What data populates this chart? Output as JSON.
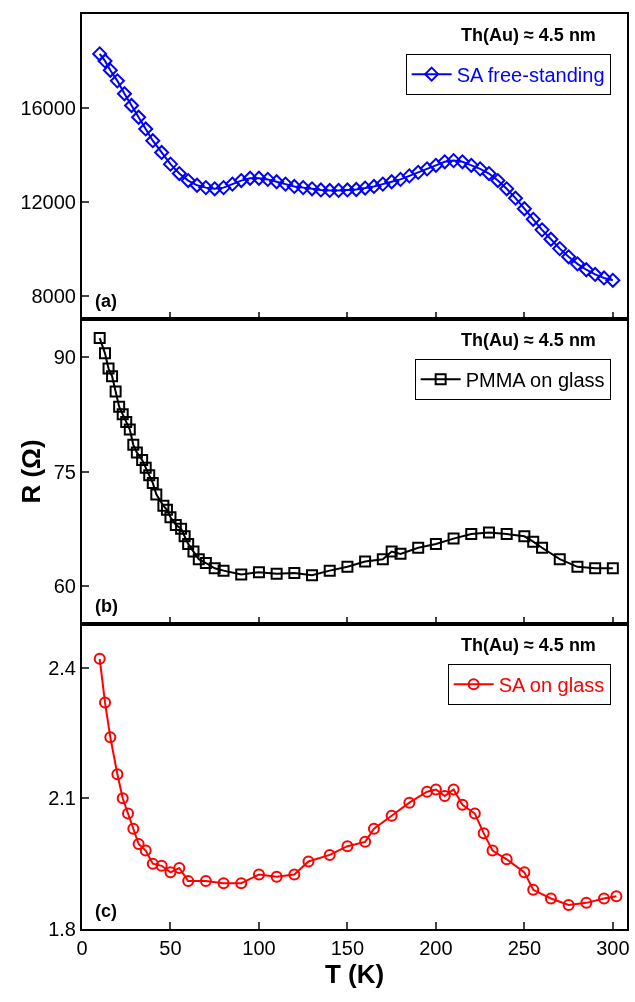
{
  "chart_data": [
    {
      "type": "line",
      "marker": "diamond",
      "legend": "top right",
      "tick_labels": "y",
      "xlim": [
        0,
        308
      ],
      "xticks": [
        0,
        50,
        100,
        150,
        200,
        250,
        300
      ],
      "ylim": [
        7000,
        20000
      ],
      "yticks": [
        8000,
        12000,
        16000
      ],
      "annotations": [
        "Th(Au) ≈ 4.5 nm",
        "(a)"
      ],
      "x": [
        10,
        13,
        16,
        20,
        24,
        28,
        32,
        36,
        40,
        45,
        50,
        55,
        60,
        65,
        70,
        75,
        80,
        85,
        90,
        95,
        100,
        105,
        110,
        115,
        120,
        125,
        130,
        135,
        140,
        145,
        150,
        155,
        160,
        165,
        170,
        175,
        180,
        185,
        190,
        195,
        200,
        205,
        210,
        215,
        220,
        225,
        230,
        235,
        240,
        245,
        250,
        255,
        260,
        265,
        270,
        275,
        280,
        285,
        290,
        295,
        300
      ],
      "series": [
        {
          "name": "SA free-standing",
          "color": "#0000ff",
          "values": [
            18300,
            18000,
            17600,
            17150,
            16600,
            16100,
            15600,
            15100,
            14600,
            14100,
            13600,
            13200,
            12900,
            12700,
            12600,
            12550,
            12600,
            12750,
            12900,
            13000,
            13000,
            12950,
            12850,
            12750,
            12650,
            12600,
            12550,
            12500,
            12480,
            12480,
            12500,
            12520,
            12580,
            12650,
            12750,
            12850,
            12950,
            13100,
            13250,
            13400,
            13550,
            13700,
            13750,
            13700,
            13550,
            13400,
            13200,
            12900,
            12550,
            12150,
            11700,
            11250,
            10800,
            10400,
            10000,
            9650,
            9350,
            9100,
            8900,
            8750,
            8650
          ]
        }
      ]
    },
    {
      "type": "line",
      "marker": "square",
      "legend": "top right",
      "tick_labels": "y",
      "ylabel": "R (Ω)",
      "xlim": [
        0,
        308
      ],
      "xticks": [
        0,
        50,
        100,
        150,
        200,
        250,
        300
      ],
      "ylim": [
        55,
        95
      ],
      "yticks": [
        60,
        75,
        90
      ],
      "annotations": [
        "Th(Au) ≈ 4.5 nm",
        "(b)"
      ],
      "x": [
        10,
        13,
        15,
        17,
        19,
        21,
        23,
        25,
        27,
        29,
        31,
        34,
        36,
        38,
        40,
        42,
        46,
        48,
        50,
        53,
        56,
        58,
        60,
        63,
        66,
        70,
        75,
        80,
        90,
        100,
        110,
        120,
        130,
        140,
        150,
        160,
        170,
        175,
        180,
        190,
        200,
        210,
        220,
        230,
        240,
        250,
        255,
        260,
        270,
        280,
        290,
        300
      ],
      "series": [
        {
          "name": "PMMA on glass",
          "color": "#000000",
          "values": [
            92.5,
            90.5,
            88.5,
            87.5,
            85.5,
            83.5,
            82.5,
            81.5,
            80.5,
            78.5,
            77.5,
            76.5,
            75.5,
            74.5,
            73.5,
            72,
            70.5,
            70,
            69,
            68,
            67.5,
            66.5,
            65.5,
            64.5,
            63.5,
            63,
            62.3,
            62,
            61.5,
            61.8,
            61.6,
            61.7,
            61.4,
            62,
            62.5,
            63.2,
            63.5,
            64.5,
            64.2,
            65,
            65.5,
            66.2,
            66.8,
            67,
            66.8,
            66.5,
            65.8,
            65,
            63.5,
            62.5,
            62.3,
            62.3
          ]
        }
      ]
    },
    {
      "type": "line",
      "marker": "circle",
      "legend": "top right",
      "xlabel": "T (K)",
      "xlim": [
        0,
        308
      ],
      "xticks": [
        0,
        50,
        100,
        150,
        200,
        250,
        300
      ],
      "ylim": [
        1.8,
        2.5
      ],
      "yticks": [
        1.8,
        2.1,
        2.4
      ],
      "annotations": [
        "Th(Au) ≈ 4.5 nm",
        "(c)"
      ],
      "x": [
        10,
        13,
        16,
        20,
        23,
        26,
        29,
        32,
        36,
        40,
        45,
        50,
        55,
        60,
        70,
        80,
        90,
        100,
        110,
        120,
        128,
        140,
        150,
        160,
        165,
        175,
        185,
        195,
        200,
        205,
        210,
        215,
        222,
        227,
        232,
        240,
        250,
        255,
        265,
        275,
        285,
        295,
        302
      ],
      "series": [
        {
          "name": "SA on glass",
          "color": "#ff0000",
          "values": [
            2.42,
            2.32,
            2.24,
            2.155,
            2.1,
            2.065,
            2.03,
            1.995,
            1.98,
            1.95,
            1.945,
            1.93,
            1.94,
            1.91,
            1.91,
            1.905,
            1.905,
            1.925,
            1.92,
            1.925,
            1.955,
            1.97,
            1.99,
            2.0,
            2.03,
            2.06,
            2.09,
            2.115,
            2.12,
            2.105,
            2.12,
            2.085,
            2.065,
            2.02,
            1.98,
            1.96,
            1.93,
            1.89,
            1.87,
            1.855,
            1.86,
            1.87,
            1.875
          ]
        }
      ]
    }
  ]
}
